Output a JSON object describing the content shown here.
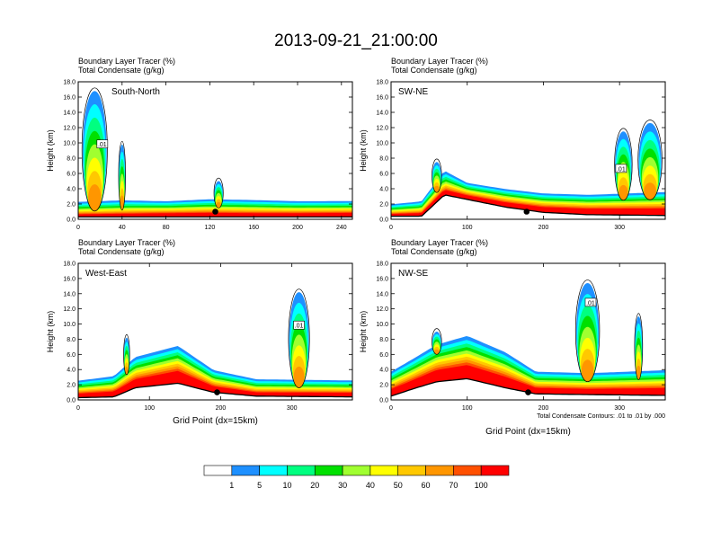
{
  "title": "2013-09-21_21:00:00",
  "colorbar": {
    "levels": [
      "1",
      "5",
      "10",
      "20",
      "30",
      "40",
      "50",
      "60",
      "70",
      "100"
    ],
    "colors": [
      "#ffffff",
      "#1e90ff",
      "#00ffff",
      "#00ff80",
      "#00e000",
      "#a0ff30",
      "#ffff00",
      "#ffc800",
      "#ff9600",
      "#ff5000",
      "#ff0000"
    ]
  },
  "chart_data": [
    {
      "type": "heatmap",
      "subtitle_line1": "Boundary Layer Tracer   (%)",
      "subtitle_line2": "Total Condensate   (g/kg)",
      "panel_label": "South-North",
      "ylabel": "Height (km)",
      "xlabel": "",
      "xlim": [
        0,
        250
      ],
      "ylim": [
        0,
        18
      ],
      "xticks": [
        "0",
        "40",
        "80",
        "120",
        "160",
        "200",
        "240"
      ],
      "yticks": [
        "0.0",
        "2.0",
        "4.0",
        "6.0",
        "8.0",
        "10.0",
        "12.0",
        "14.0",
        "16.0",
        "18.0"
      ],
      "contour_label": ".01",
      "contour_label_xy": [
        22,
        9.8
      ],
      "marker_xy": [
        125,
        1.0
      ],
      "note": "",
      "ridges": [
        [
          0,
          0.3
        ],
        [
          250,
          0.3
        ]
      ],
      "bl": [
        [
          0,
          1.0
        ],
        [
          40,
          1.2
        ],
        [
          80,
          1.4
        ],
        [
          120,
          1.5
        ],
        [
          160,
          1.4
        ],
        [
          200,
          1.4
        ],
        [
          250,
          1.5
        ]
      ],
      "bl_ext": [
        [
          0,
          2.6
        ],
        [
          40,
          2.8
        ],
        [
          80,
          2.6
        ],
        [
          120,
          2.9
        ],
        [
          160,
          2.8
        ],
        [
          200,
          2.6
        ],
        [
          250,
          2.6
        ]
      ],
      "clouds": [
        {
          "x": 15,
          "w": 22,
          "top": 16.8
        },
        {
          "x": 40,
          "w": 6,
          "top": 9.8
        },
        {
          "x": 128,
          "w": 8,
          "top": 5.0
        }
      ]
    },
    {
      "type": "heatmap",
      "subtitle_line1": "Boundary Layer Tracer   (%)",
      "subtitle_line2": "Total Condensate   (g/kg)",
      "panel_label": "SW-NE",
      "ylabel": "Height (km)",
      "xlabel": "",
      "xlim": [
        0,
        360
      ],
      "ylim": [
        0,
        18
      ],
      "xticks": [
        "0",
        "100",
        "200",
        "300"
      ],
      "yticks": [
        "0.0",
        "2.0",
        "4.0",
        "6.0",
        "8.0",
        "10.0",
        "12.0",
        "14.0",
        "16.0",
        "18.0"
      ],
      "contour_label": ".01",
      "contour_label_xy": [
        302,
        6.6
      ],
      "marker_xy": [
        178,
        1.0
      ],
      "note": "",
      "ridges": [
        [
          0,
          0.4
        ],
        [
          40,
          0.4
        ],
        [
          70,
          3.2
        ],
        [
          100,
          2.6
        ],
        [
          150,
          1.6
        ],
        [
          200,
          0.9
        ],
        [
          260,
          0.6
        ],
        [
          360,
          0.5
        ]
      ],
      "bl": [
        [
          0,
          1.0
        ],
        [
          40,
          1.3
        ],
        [
          70,
          4.6
        ],
        [
          100,
          3.8
        ],
        [
          150,
          3.0
        ],
        [
          200,
          2.5
        ],
        [
          260,
          2.4
        ],
        [
          360,
          2.6
        ]
      ],
      "bl_ext": [
        [
          0,
          2.2
        ],
        [
          40,
          2.6
        ],
        [
          70,
          6.8
        ],
        [
          100,
          5.0
        ],
        [
          150,
          4.2
        ],
        [
          200,
          3.6
        ],
        [
          260,
          3.4
        ],
        [
          360,
          3.8
        ]
      ],
      "clouds": [
        {
          "x": 60,
          "w": 12,
          "top": 7.5
        },
        {
          "x": 340,
          "w": 30,
          "top": 12.6
        },
        {
          "x": 305,
          "w": 22,
          "top": 11.5
        }
      ]
    },
    {
      "type": "heatmap",
      "subtitle_line1": "Boundary Layer Tracer   (%)",
      "subtitle_line2": "Total Condensate   (g/kg)",
      "panel_label": "West-East",
      "ylabel": "Height (km)",
      "xlabel": "Grid Point (dx=15km)",
      "xlim": [
        0,
        385
      ],
      "ylim": [
        0,
        18
      ],
      "xticks": [
        "0",
        "100",
        "200",
        "300"
      ],
      "yticks": [
        "0.0",
        "2.0",
        "4.0",
        "6.0",
        "8.0",
        "10.0",
        "12.0",
        "14.0",
        "16.0",
        "18.0"
      ],
      "contour_label": ".01",
      "contour_label_xy": [
        310,
        9.8
      ],
      "marker_xy": [
        195,
        1.0
      ],
      "note": "",
      "ridges": [
        [
          0,
          0.3
        ],
        [
          50,
          0.4
        ],
        [
          80,
          1.6
        ],
        [
          140,
          2.2
        ],
        [
          190,
          1.0
        ],
        [
          250,
          0.5
        ],
        [
          385,
          0.4
        ]
      ],
      "bl": [
        [
          0,
          1.5
        ],
        [
          50,
          2.0
        ],
        [
          80,
          4.2
        ],
        [
          140,
          6.0
        ],
        [
          190,
          2.8
        ],
        [
          250,
          1.6
        ],
        [
          385,
          1.6
        ]
      ],
      "bl_ext": [
        [
          0,
          2.8
        ],
        [
          50,
          3.4
        ],
        [
          80,
          6.0
        ],
        [
          140,
          7.4
        ],
        [
          190,
          4.2
        ],
        [
          250,
          3.0
        ],
        [
          385,
          2.8
        ]
      ],
      "clouds": [
        {
          "x": 310,
          "w": 28,
          "top": 14.2
        },
        {
          "x": 68,
          "w": 8,
          "top": 8.2
        }
      ]
    },
    {
      "type": "heatmap",
      "subtitle_line1": "Boundary Layer Tracer   (%)",
      "subtitle_line2": "Total Condensate   (g/kg)",
      "panel_label": "NW-SE",
      "ylabel": "Height (km)",
      "xlabel": "Grid Point (dx=15km)",
      "xlim": [
        0,
        360
      ],
      "ylim": [
        0,
        18
      ],
      "xticks": [
        "0",
        "100",
        "200",
        "300"
      ],
      "yticks": [
        "0.0",
        "2.0",
        "4.0",
        "6.0",
        "8.0",
        "10.0",
        "12.0",
        "14.0",
        "16.0",
        "18.0"
      ],
      "contour_label": ".01",
      "contour_label_xy": [
        262,
        12.8
      ],
      "marker_xy": [
        180,
        1.0
      ],
      "note": "Total Condensate Contours: .01 to .01 by .000",
      "ridges": [
        [
          0,
          0.5
        ],
        [
          30,
          1.5
        ],
        [
          60,
          2.4
        ],
        [
          100,
          2.8
        ],
        [
          150,
          1.6
        ],
        [
          190,
          0.8
        ],
        [
          260,
          0.7
        ],
        [
          360,
          0.6
        ]
      ],
      "bl": [
        [
          0,
          2.6
        ],
        [
          30,
          4.2
        ],
        [
          60,
          6.0
        ],
        [
          100,
          7.0
        ],
        [
          150,
          5.0
        ],
        [
          190,
          2.6
        ],
        [
          260,
          2.4
        ],
        [
          360,
          2.8
        ]
      ],
      "bl_ext": [
        [
          0,
          4.0
        ],
        [
          30,
          5.8
        ],
        [
          60,
          7.6
        ],
        [
          100,
          8.8
        ],
        [
          150,
          6.6
        ],
        [
          190,
          4.0
        ],
        [
          260,
          3.8
        ],
        [
          360,
          4.2
        ]
      ],
      "clouds": [
        {
          "x": 258,
          "w": 30,
          "top": 15.4
        },
        {
          "x": 325,
          "w": 10,
          "top": 11.0
        },
        {
          "x": 60,
          "w": 12,
          "top": 9.0
        }
      ]
    }
  ]
}
